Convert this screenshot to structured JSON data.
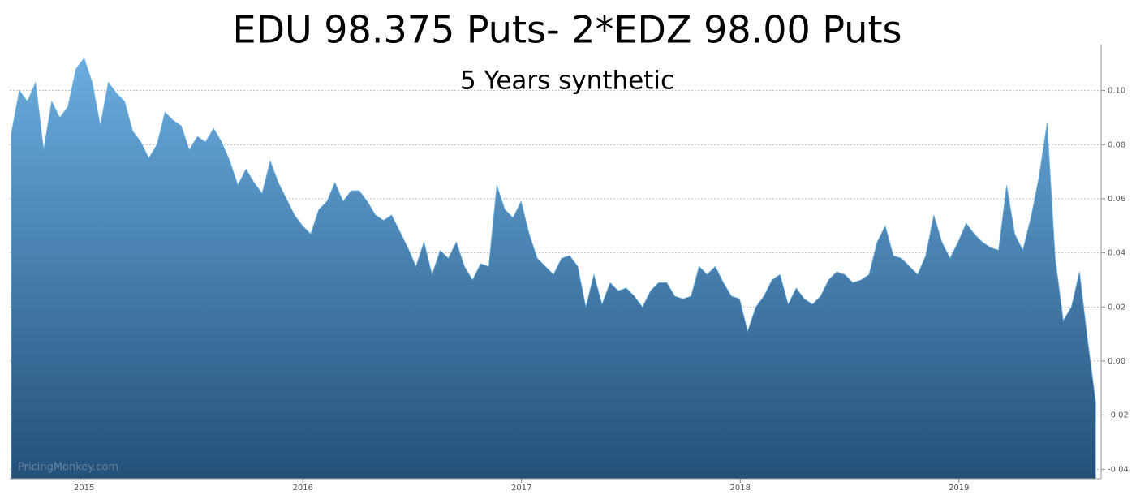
{
  "chart_data": {
    "type": "area",
    "title": "EDU 98.375 Puts- 2*EDZ 98.00 Puts",
    "subtitle": "5 Years synthetic",
    "watermark": "PricingMonkey.com",
    "gradient": [
      "#6cb0e2",
      "#24507a"
    ],
    "grid": true,
    "xlim": [
      2014.66,
      2019.65
    ],
    "xticks": [
      2015,
      2016,
      2017,
      2018,
      2019
    ],
    "ylim": [
      -0.0435,
      0.117
    ],
    "yticks": [
      {
        "value": 0.1,
        "label": "0.10"
      },
      0.08,
      0.06,
      0.04,
      0.02,
      {
        "value": 0,
        "label": "0.00"
      },
      -0.02,
      -0.04
    ],
    "x": [
      2014.667,
      2014.704,
      2014.741,
      2014.778,
      2014.815,
      2014.852,
      2014.889,
      2014.926,
      2014.963,
      2015.0,
      2015.037,
      2015.074,
      2015.111,
      2015.148,
      2015.185,
      2015.222,
      2015.259,
      2015.296,
      2015.333,
      2015.37,
      2015.407,
      2015.444,
      2015.481,
      2015.518,
      2015.555,
      2015.592,
      2015.629,
      2015.666,
      2015.703,
      2015.74,
      2015.777,
      2015.814,
      2015.851,
      2015.888,
      2015.925,
      2015.962,
      2015.999,
      2016.036,
      2016.073,
      2016.11,
      2016.147,
      2016.184,
      2016.221,
      2016.258,
      2016.295,
      2016.332,
      2016.369,
      2016.406,
      2016.443,
      2016.48,
      2016.517,
      2016.554,
      2016.591,
      2016.628,
      2016.665,
      2016.702,
      2016.739,
      2016.776,
      2016.813,
      2016.85,
      2016.887,
      2016.924,
      2016.961,
      2016.998,
      2017.035,
      2017.072,
      2017.109,
      2017.146,
      2017.183,
      2017.22,
      2017.257,
      2017.294,
      2017.331,
      2017.368,
      2017.405,
      2017.442,
      2017.479,
      2017.516,
      2017.553,
      2017.59,
      2017.627,
      2017.664,
      2017.701,
      2017.738,
      2017.775,
      2017.812,
      2017.849,
      2017.886,
      2017.923,
      2017.96,
      2017.997,
      2018.034,
      2018.071,
      2018.108,
      2018.145,
      2018.182,
      2018.219,
      2018.256,
      2018.293,
      2018.33,
      2018.367,
      2018.404,
      2018.441,
      2018.478,
      2018.515,
      2018.552,
      2018.589,
      2018.626,
      2018.663,
      2018.7,
      2018.737,
      2018.774,
      2018.811,
      2018.848,
      2018.885,
      2018.922,
      2018.959,
      2018.996,
      2019.033,
      2019.07,
      2019.107,
      2019.144,
      2019.181,
      2019.218,
      2019.255,
      2019.292,
      2019.329,
      2019.366,
      2019.403,
      2019.44,
      2019.477,
      2019.514,
      2019.551,
      2019.588,
      2019.625
    ],
    "values": [
      0.084,
      0.1,
      0.096,
      0.103,
      0.078,
      0.096,
      0.09,
      0.094,
      0.108,
      0.112,
      0.103,
      0.087,
      0.103,
      0.099,
      0.096,
      0.085,
      0.081,
      0.075,
      0.08,
      0.092,
      0.089,
      0.087,
      0.078,
      0.083,
      0.081,
      0.086,
      0.081,
      0.074,
      0.065,
      0.071,
      0.066,
      0.062,
      0.074,
      0.066,
      0.06,
      0.054,
      0.05,
      0.047,
      0.056,
      0.059,
      0.066,
      0.059,
      0.063,
      0.063,
      0.059,
      0.054,
      0.052,
      0.054,
      0.048,
      0.042,
      0.035,
      0.044,
      0.032,
      0.041,
      0.038,
      0.044,
      0.035,
      0.03,
      0.036,
      0.035,
      0.065,
      0.056,
      0.053,
      0.059,
      0.047,
      0.038,
      0.035,
      0.032,
      0.038,
      0.039,
      0.035,
      0.02,
      0.032,
      0.021,
      0.029,
      0.026,
      0.027,
      0.024,
      0.02,
      0.026,
      0.029,
      0.029,
      0.024,
      0.023,
      0.024,
      0.035,
      0.032,
      0.035,
      0.029,
      0.024,
      0.023,
      0.011,
      0.02,
      0.024,
      0.03,
      0.032,
      0.021,
      0.027,
      0.023,
      0.021,
      0.024,
      0.03,
      0.033,
      0.032,
      0.029,
      0.03,
      0.032,
      0.044,
      0.05,
      0.039,
      0.038,
      0.035,
      0.032,
      0.039,
      0.054,
      0.044,
      0.038,
      0.044,
      0.051,
      0.047,
      0.044,
      0.042,
      0.041,
      0.065,
      0.047,
      0.041,
      0.053,
      0.068,
      0.088,
      0.038,
      0.015,
      0.02,
      0.033,
      0.008,
      -0.015
    ]
  }
}
